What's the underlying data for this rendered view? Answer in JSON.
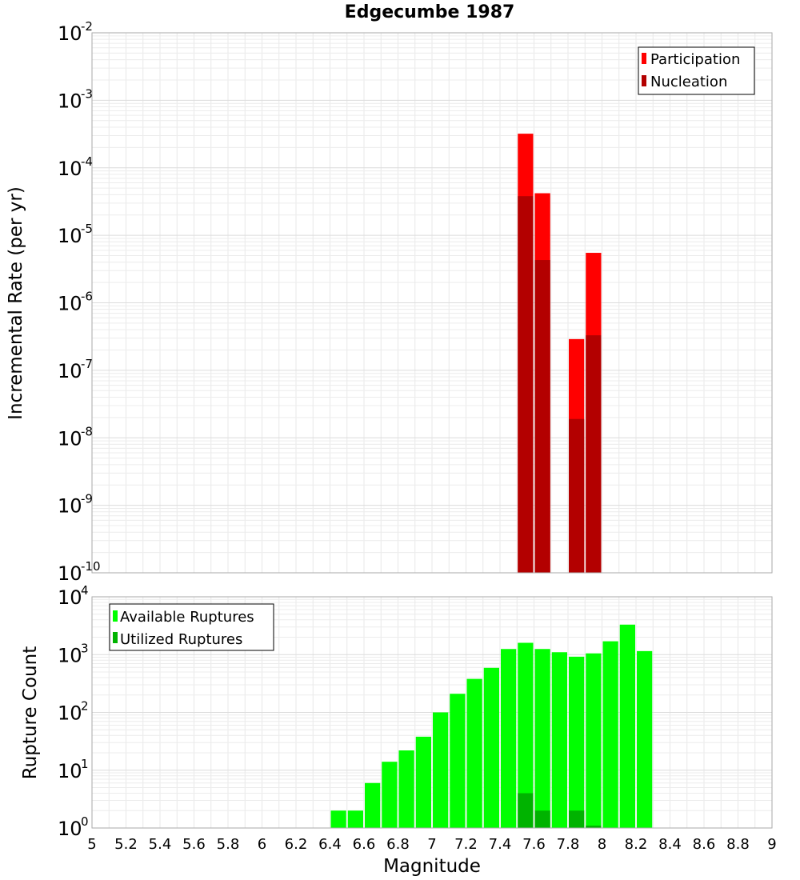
{
  "chart_data": [
    {
      "id": "rate",
      "type": "bar",
      "title": "Edgecumbe 1987",
      "ylabel": "Incremental Rate (per yr)",
      "xlabel": "",
      "yscale": "log",
      "xlim": [
        5,
        9
      ],
      "ylim_exp": [
        -10,
        -2
      ],
      "bin_width": 0.1,
      "legend": {
        "placement": "top-right"
      },
      "series": [
        {
          "name": "Participation",
          "color": "#ff0000",
          "x": [
            7.55,
            7.65,
            7.85,
            7.95
          ],
          "values": [
            0.00032,
            4.2e-05,
            2.9e-07,
            5.5e-06
          ]
        },
        {
          "name": "Nucleation",
          "color": "#b30000",
          "x": [
            7.55,
            7.65,
            7.85,
            7.95
          ],
          "values": [
            3.8e-05,
            4.3e-06,
            1.9e-08,
            3.3e-07
          ]
        }
      ]
    },
    {
      "id": "count",
      "type": "bar",
      "title": "",
      "ylabel": "Rupture Count",
      "xlabel": "Magnitude",
      "yscale": "log",
      "xlim": [
        5,
        9
      ],
      "ylim_exp": [
        0,
        4
      ],
      "bin_width": 0.1,
      "legend": {
        "placement": "top-left"
      },
      "xticks": [
        "5",
        "5.2",
        "5.4",
        "5.6",
        "5.8",
        "6",
        "6.2",
        "6.4",
        "6.6",
        "6.8",
        "7",
        "7.2",
        "7.4",
        "7.6",
        "7.8",
        "8",
        "8.2",
        "8.4",
        "8.6",
        "8.8",
        "9"
      ],
      "series": [
        {
          "name": "Available Ruptures",
          "color": "#00ff00",
          "x": [
            6.45,
            6.55,
            6.65,
            6.75,
            6.85,
            6.95,
            7.05,
            7.15,
            7.25,
            7.35,
            7.45,
            7.55,
            7.65,
            7.75,
            7.85,
            7.95,
            8.05,
            8.15,
            8.25
          ],
          "values": [
            2,
            2,
            6,
            14,
            22,
            38,
            100,
            210,
            380,
            590,
            1250,
            1600,
            1250,
            1100,
            920,
            1050,
            1700,
            3300,
            1150
          ]
        },
        {
          "name": "Utilized Ruptures",
          "color": "#00b300",
          "x": [
            7.55,
            7.65,
            7.85,
            7.95
          ],
          "values": [
            4,
            2,
            2,
            1.1
          ]
        }
      ]
    }
  ]
}
